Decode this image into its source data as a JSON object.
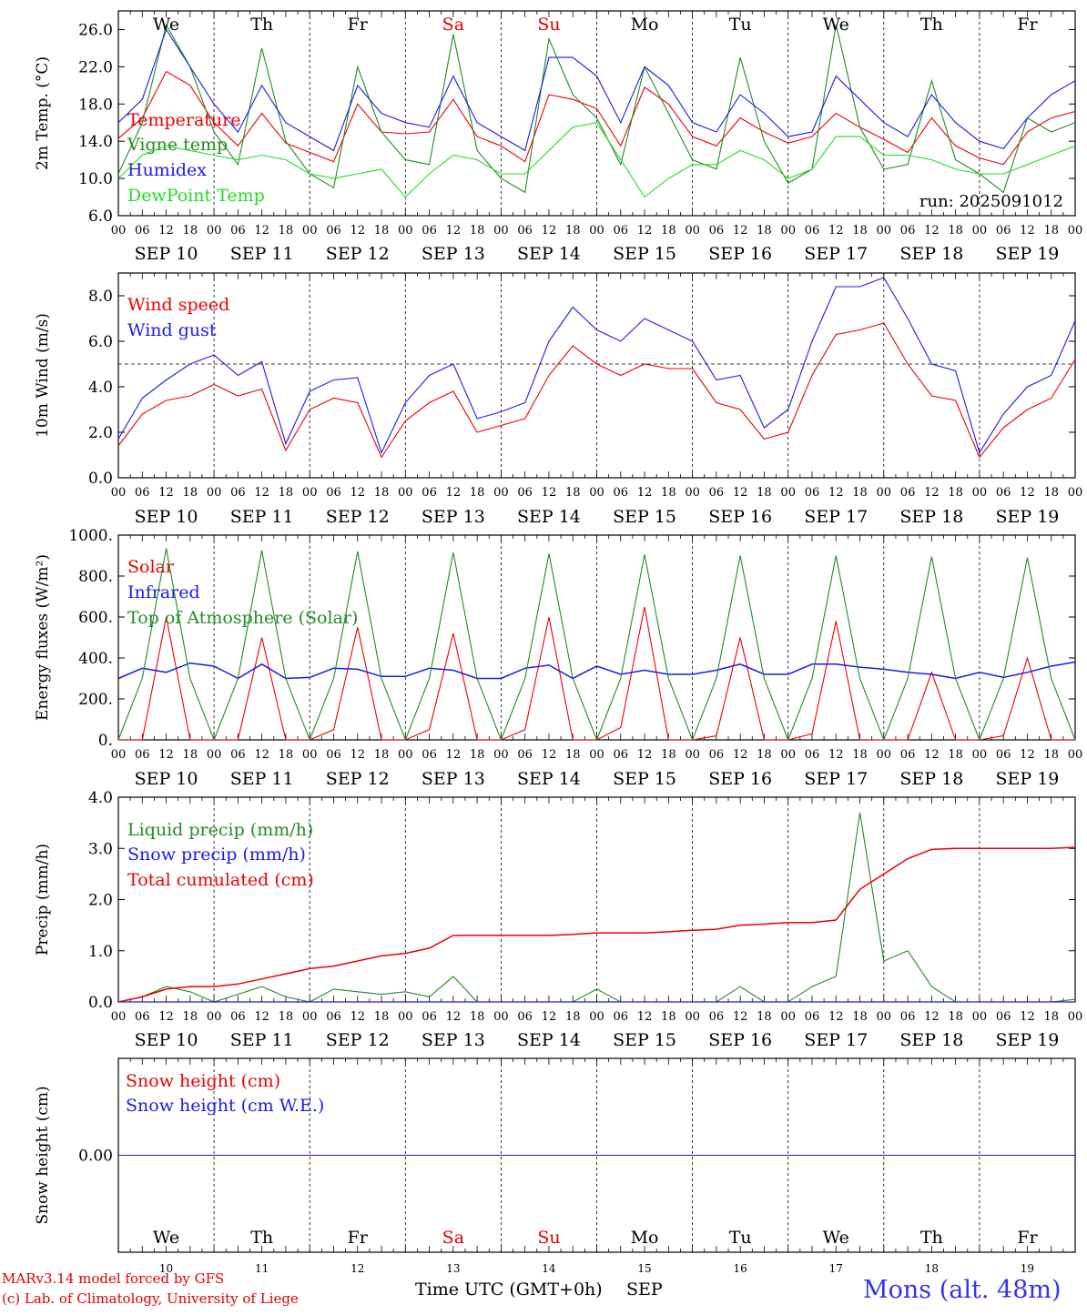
{
  "header_days": [
    {
      "label": "We",
      "color": "#000000"
    },
    {
      "label": "Th",
      "color": "#000000"
    },
    {
      "label": "Fr",
      "color": "#000000"
    },
    {
      "label": "Sa",
      "color": "#e00000"
    },
    {
      "label": "Su",
      "color": "#e00000"
    },
    {
      "label": "Mo",
      "color": "#000000"
    },
    {
      "label": "Tu",
      "color": "#000000"
    },
    {
      "label": "We",
      "color": "#000000"
    },
    {
      "label": "Th",
      "color": "#000000"
    },
    {
      "label": "Fr",
      "color": "#000000"
    }
  ],
  "date_labels": [
    "SEP 10",
    "SEP 11",
    "SEP 12",
    "SEP 13",
    "SEP 14",
    "SEP 15",
    "SEP 16",
    "SEP 17",
    "SEP 18",
    "SEP 19"
  ],
  "hour_ticks": [
    "00",
    "06",
    "12",
    "18"
  ],
  "hour_tick_last": "00",
  "bottom_day_numbers": [
    "10",
    "11",
    "12",
    "13",
    "14",
    "15",
    "16",
    "17",
    "18",
    "19"
  ],
  "colors": {
    "red": "#ee0000",
    "green": "#228b22",
    "blue": "#1a1aee",
    "light_green": "#22dd22",
    "black": "#000000"
  },
  "footer": {
    "model": "MARv3.14 model forced by GFS",
    "lab": "(c) Lab. of Climatology, University of Liege",
    "time_axis": "Time UTC (GMT+0h)",
    "month": "SEP",
    "station": "Mons (alt. 48m)"
  },
  "chart_data": [
    {
      "type": "line",
      "id": "temp",
      "ylabel": "2m Temp. (°C)",
      "ylim": [
        6,
        28
      ],
      "yticks": [
        6,
        10,
        14,
        18,
        22,
        26
      ],
      "ytick_labels": [
        "6.0",
        "10.0",
        "14.0",
        "18.0",
        "22.0",
        "26.0"
      ],
      "annotation": "run: 2025091012",
      "x_hours": [
        0,
        6,
        12,
        18,
        24,
        30,
        36,
        42,
        48,
        54,
        60,
        66,
        72,
        78,
        84,
        90,
        96,
        102,
        108,
        114,
        120,
        126,
        132,
        138,
        144,
        150,
        156,
        162,
        168,
        174,
        180,
        186,
        192,
        198,
        204,
        210,
        216,
        222,
        228,
        234,
        240
      ],
      "series": [
        {
          "name": "Temperature",
          "color": "red",
          "values": [
            14.3,
            16.5,
            21.5,
            20.0,
            16.0,
            13.5,
            17.0,
            13.8,
            12.8,
            11.8,
            18.0,
            15.0,
            14.8,
            15.0,
            18.5,
            14.5,
            13.5,
            11.8,
            19.0,
            18.5,
            17.5,
            13.5,
            19.8,
            18.0,
            14.5,
            13.5,
            16.5,
            15.0,
            13.8,
            14.5,
            17.0,
            15.5,
            14.2,
            12.8,
            16.5,
            13.5,
            12.2,
            11.5,
            15.0,
            16.5,
            17.2
          ]
        },
        {
          "name": "Vigne temp",
          "color": "green",
          "values": [
            10.5,
            16.0,
            26.5,
            22.0,
            15.0,
            11.5,
            24.0,
            14.0,
            10.5,
            9.0,
            22.0,
            15.0,
            12.0,
            11.5,
            25.5,
            13.0,
            10.0,
            8.5,
            25.0,
            19.0,
            16.5,
            11.5,
            22.0,
            17.0,
            12.0,
            11.0,
            23.0,
            14.0,
            9.5,
            11.0,
            26.5,
            15.5,
            11.0,
            11.5,
            20.5,
            12.0,
            10.5,
            8.5,
            16.5,
            15.0,
            16.0
          ]
        },
        {
          "name": "Humidex",
          "color": "blue",
          "values": [
            16.0,
            18.5,
            26.0,
            22.0,
            18.0,
            15.0,
            20.0,
            16.0,
            14.5,
            13.0,
            20.0,
            17.0,
            16.0,
            15.5,
            21.0,
            16.0,
            14.5,
            13.0,
            23.0,
            23.0,
            21.0,
            16.0,
            22.0,
            20.0,
            16.0,
            15.0,
            19.0,
            17.0,
            14.5,
            15.0,
            21.0,
            18.5,
            16.0,
            14.5,
            19.0,
            16.0,
            14.0,
            13.2,
            16.5,
            19.0,
            20.5
          ]
        },
        {
          "name": "DewPoint Temp",
          "color": "light_green",
          "values": [
            10.0,
            12.5,
            13.5,
            13.0,
            12.5,
            12.0,
            12.5,
            12.0,
            10.5,
            10.0,
            10.5,
            11.0,
            8.0,
            10.5,
            12.5,
            12.0,
            10.5,
            10.5,
            13.0,
            15.5,
            16.0,
            12.0,
            8.0,
            10.0,
            11.5,
            11.5,
            13.0,
            12.0,
            10.0,
            11.0,
            14.5,
            14.5,
            12.5,
            12.5,
            12.0,
            11.0,
            10.5,
            10.5,
            11.5,
            12.5,
            13.5
          ]
        }
      ]
    },
    {
      "type": "line",
      "id": "wind",
      "ylabel": "10m Wind (m/s)",
      "ylim": [
        0,
        9
      ],
      "yticks": [
        0,
        2,
        4,
        6,
        8
      ],
      "ytick_labels": [
        "0.0",
        "2.0",
        "4.0",
        "6.0",
        "8.0"
      ],
      "reference_line": 5,
      "x_hours": [
        0,
        6,
        12,
        18,
        24,
        30,
        36,
        42,
        48,
        54,
        60,
        66,
        72,
        78,
        84,
        90,
        96,
        102,
        108,
        114,
        120,
        126,
        132,
        138,
        144,
        150,
        156,
        162,
        168,
        174,
        180,
        186,
        192,
        198,
        204,
        210,
        216,
        222,
        228,
        234,
        240
      ],
      "series": [
        {
          "name": "Wind speed",
          "color": "red",
          "values": [
            1.4,
            2.8,
            3.4,
            3.6,
            4.1,
            3.6,
            3.9,
            1.2,
            3.0,
            3.5,
            3.3,
            0.9,
            2.5,
            3.3,
            3.8,
            2.0,
            2.3,
            2.6,
            4.5,
            5.8,
            5.0,
            4.5,
            5.0,
            4.8,
            4.8,
            3.3,
            3.0,
            1.7,
            2.0,
            4.5,
            6.3,
            6.5,
            6.8,
            5.0,
            3.6,
            3.4,
            0.9,
            2.2,
            3.0,
            3.5,
            5.2
          ]
        },
        {
          "name": "Wind gust",
          "color": "blue",
          "values": [
            1.7,
            3.5,
            4.3,
            5.0,
            5.4,
            4.5,
            5.1,
            1.5,
            3.8,
            4.3,
            4.4,
            1.1,
            3.3,
            4.5,
            5.0,
            2.6,
            2.9,
            3.3,
            6.0,
            7.5,
            6.5,
            6.0,
            7.0,
            6.5,
            6.0,
            4.3,
            4.5,
            2.2,
            3.0,
            6.0,
            8.4,
            8.4,
            8.8,
            7.0,
            5.0,
            4.7,
            1.1,
            2.8,
            4.0,
            4.5,
            6.9
          ]
        }
      ]
    },
    {
      "type": "line",
      "id": "energy",
      "ylabel": "Energy fluxes (W/m²)",
      "ylim": [
        0,
        1000
      ],
      "yticks": [
        0,
        200,
        400,
        600,
        800,
        1000
      ],
      "ytick_labels": [
        "0.",
        "200.",
        "400.",
        "600.",
        "800.",
        "1000."
      ],
      "x_hours": [
        0,
        6,
        12,
        18,
        24,
        30,
        36,
        42,
        48,
        54,
        60,
        66,
        72,
        78,
        84,
        90,
        96,
        102,
        108,
        114,
        120,
        126,
        132,
        138,
        144,
        150,
        156,
        162,
        168,
        174,
        180,
        186,
        192,
        198,
        204,
        210,
        216,
        222,
        228,
        234,
        240
      ],
      "series": [
        {
          "name": "Solar",
          "color": "red",
          "values": [
            0,
            0,
            600,
            0,
            0,
            0,
            500,
            0,
            0,
            50,
            550,
            0,
            0,
            50,
            520,
            0,
            0,
            50,
            600,
            0,
            0,
            60,
            650,
            0,
            0,
            20,
            500,
            0,
            0,
            30,
            580,
            0,
            0,
            0,
            330,
            0,
            0,
            20,
            400,
            0,
            0
          ]
        },
        {
          "name": "Infrared",
          "color": "blue",
          "values": [
            300,
            350,
            330,
            375,
            360,
            300,
            370,
            300,
            305,
            350,
            345,
            310,
            310,
            350,
            340,
            300,
            300,
            350,
            365,
            300,
            360,
            320,
            340,
            320,
            320,
            340,
            370,
            320,
            320,
            370,
            370,
            355,
            345,
            330,
            320,
            300,
            330,
            305,
            330,
            360,
            380
          ]
        },
        {
          "name": "Top of Atmosphere (Solar)",
          "color": "green",
          "values": [
            0,
            300,
            935,
            300,
            0,
            300,
            925,
            300,
            0,
            300,
            920,
            300,
            0,
            300,
            915,
            300,
            0,
            300,
            910,
            300,
            0,
            300,
            905,
            300,
            0,
            300,
            900,
            300,
            0,
            300,
            900,
            300,
            0,
            300,
            895,
            300,
            0,
            300,
            890,
            300,
            0
          ]
        }
      ]
    },
    {
      "type": "line",
      "id": "precip",
      "ylabel": "Precip (mm/h)",
      "ylim": [
        0,
        4
      ],
      "yticks": [
        0,
        1,
        2,
        3,
        4
      ],
      "ytick_labels": [
        "0.0",
        "1.0",
        "2.0",
        "3.0",
        "4.0"
      ],
      "x_hours": [
        0,
        6,
        12,
        18,
        24,
        30,
        36,
        42,
        48,
        54,
        60,
        66,
        72,
        78,
        84,
        90,
        96,
        102,
        108,
        114,
        120,
        126,
        132,
        138,
        144,
        150,
        156,
        162,
        168,
        174,
        180,
        186,
        192,
        198,
        204,
        210,
        216,
        222,
        228,
        234,
        240
      ],
      "series": [
        {
          "name": "Liquid precip (mm/h)",
          "color": "green",
          "values": [
            0,
            0.1,
            0.3,
            0.2,
            0,
            0.15,
            0.3,
            0.1,
            0,
            0.25,
            0.2,
            0.15,
            0.2,
            0.1,
            0.5,
            0,
            0,
            0,
            0,
            0,
            0.25,
            0,
            0,
            0,
            0,
            0,
            0.3,
            0,
            0,
            0.3,
            0.5,
            3.7,
            0.8,
            1.0,
            0.3,
            0,
            0,
            0,
            0,
            0,
            0.05
          ]
        },
        {
          "name": "Snow precip (mm/h)",
          "color": "blue",
          "values": [
            0,
            0,
            0,
            0,
            0,
            0,
            0,
            0,
            0,
            0,
            0,
            0,
            0,
            0,
            0,
            0,
            0,
            0,
            0,
            0,
            0,
            0,
            0,
            0,
            0,
            0,
            0,
            0,
            0,
            0,
            0,
            0,
            0,
            0,
            0,
            0,
            0,
            0,
            0,
            0,
            0
          ]
        },
        {
          "name": "Total cumulated (cm)",
          "color": "red",
          "values": [
            0,
            0.1,
            0.25,
            0.3,
            0.3,
            0.35,
            0.45,
            0.55,
            0.65,
            0.7,
            0.8,
            0.9,
            0.95,
            1.05,
            1.3,
            1.3,
            1.3,
            1.3,
            1.3,
            1.32,
            1.35,
            1.35,
            1.35,
            1.37,
            1.4,
            1.42,
            1.5,
            1.52,
            1.55,
            1.55,
            1.6,
            2.2,
            2.5,
            2.8,
            2.98,
            3.0,
            3.0,
            3.0,
            3.0,
            3.0,
            3.02
          ]
        }
      ]
    },
    {
      "type": "line",
      "id": "snow",
      "ylabel": "Snow height (cm)",
      "ylim": [
        -1,
        1
      ],
      "yticks": [
        0
      ],
      "ytick_labels": [
        "0.00"
      ],
      "x_hours": [
        0,
        240
      ],
      "series": [
        {
          "name": "Snow height (cm)",
          "color": "red",
          "values": [
            0,
            0
          ]
        },
        {
          "name": "Snow height (cm W.E.)",
          "color": "blue",
          "values": [
            0,
            0
          ]
        }
      ]
    }
  ]
}
